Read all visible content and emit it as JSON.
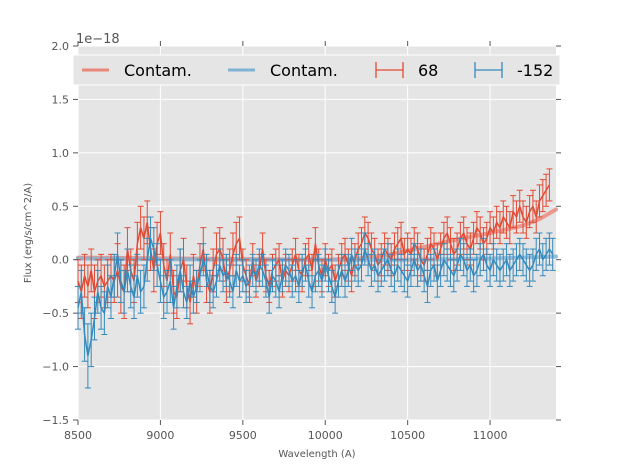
{
  "chart_data": {
    "type": "line",
    "title": "",
    "xlabel": "Wavelength (A)",
    "ylabel": "Flux (erg/s/cm^2/A)",
    "y_offset_label": "1e−18",
    "xlim": [
      8500,
      11400
    ],
    "ylim": [
      -1.5,
      2.0
    ],
    "xticks": [
      8500,
      9000,
      9500,
      10000,
      10500,
      11000
    ],
    "xtick_labels": [
      "8500",
      "9000",
      "9500",
      "10000",
      "10500",
      "11000"
    ],
    "yticks": [
      -1.5,
      -1.0,
      -0.5,
      0.0,
      0.5,
      1.0,
      1.5,
      2.0
    ],
    "ytick_labels": [
      "−1.5",
      "−1.0",
      "−0.5",
      "0.0",
      "0.5",
      "1.0",
      "1.5",
      "2.0"
    ],
    "grid": true,
    "style": "ggplot",
    "legend": {
      "placement": "top",
      "ncol": 4,
      "entries": [
        {
          "label": "Contam.",
          "kind": "line",
          "color": "#E8877A"
        },
        {
          "label": "Contam.",
          "kind": "line",
          "color": "#7FB2D5"
        },
        {
          "label": "68",
          "kind": "errorbar",
          "color": "#E24A33"
        },
        {
          "label": "-152",
          "kind": "errorbar",
          "color": "#348ABD"
        }
      ]
    },
    "x_start": 8500,
    "x_step": 20,
    "series": [
      {
        "name": "Contam. (68)",
        "kind": "line",
        "color": "#E8877A",
        "x": [
          8500,
          10000,
          10200,
          10400,
          10600,
          10800,
          11000,
          11200,
          11300,
          11400
        ],
        "values": [
          0.02,
          0.0,
          0.01,
          0.05,
          0.12,
          0.19,
          0.25,
          0.32,
          0.38,
          0.47
        ]
      },
      {
        "name": "Contam. (-152)",
        "kind": "line",
        "color": "#7FB2D5",
        "x": [
          8500,
          9500,
          10000,
          10500,
          11000,
          11400
        ],
        "values": [
          0.01,
          0.0,
          0.0,
          0.0,
          0.01,
          0.03
        ]
      },
      {
        "name": "68",
        "kind": "errorbar",
        "color": "#E24A33",
        "values": [
          -0.2,
          -0.3,
          -0.15,
          -0.25,
          -0.1,
          -0.3,
          -0.2,
          -0.15,
          -0.25,
          -0.2,
          -0.15,
          -0.2,
          -0.1,
          -0.25,
          -0.3,
          0.1,
          -0.1,
          -0.2,
          0.15,
          0.3,
          0.2,
          0.35,
          0.1,
          -0.1,
          0.15,
          0.25,
          -0.05,
          -0.2,
          0.05,
          -0.3,
          -0.35,
          -0.1,
          0.0,
          -0.25,
          -0.4,
          -0.15,
          -0.3,
          -0.05,
          0.1,
          -0.2,
          -0.3,
          -0.1,
          0.05,
          0.1,
          0.0,
          -0.2,
          -0.1,
          0.05,
          0.15,
          0.2,
          -0.05,
          -0.15,
          -0.25,
          0.0,
          -0.2,
          -0.1,
          0.1,
          -0.15,
          -0.25,
          -0.1,
          -0.05,
          0.0,
          -0.2,
          -0.1,
          -0.15,
          -0.05,
          0.05,
          -0.1,
          -0.15,
          0.0,
          0.05,
          -0.1,
          0.15,
          -0.05,
          -0.15,
          0.0,
          -0.1,
          -0.05,
          -0.2,
          -0.1,
          0.0,
          0.05,
          -0.05,
          -0.15,
          0.0,
          0.1,
          0.15,
          0.25,
          0.2,
          0.1,
          0.05,
          -0.05,
          0.0,
          0.1,
          0.05,
          0.0,
          0.1,
          0.15,
          0.2,
          0.05,
          0.1,
          0.05,
          0.15,
          0.1,
          0.0,
          -0.05,
          0.05,
          0.15,
          0.1,
          0.0,
          0.1,
          0.2,
          0.25,
          0.15,
          0.05,
          0.1,
          0.2,
          0.25,
          0.15,
          0.1,
          0.2,
          0.3,
          0.25,
          0.15,
          0.2,
          0.3,
          0.25,
          0.35,
          0.3,
          0.4,
          0.35,
          0.3,
          0.45,
          0.4,
          0.5,
          0.4,
          0.35,
          0.45,
          0.5,
          0.4,
          0.55,
          0.6,
          0.65,
          0.7
        ],
        "errors": [
          0.2,
          0.25,
          0.2,
          0.2,
          0.2,
          0.25,
          0.2,
          0.2,
          0.2,
          0.2,
          0.2,
          0.2,
          0.25,
          0.25,
          0.25,
          0.2,
          0.2,
          0.2,
          0.2,
          0.2,
          0.2,
          0.2,
          0.2,
          0.2,
          0.2,
          0.2,
          0.2,
          0.2,
          0.2,
          0.2,
          0.2,
          0.2,
          0.2,
          0.2,
          0.2,
          0.2,
          0.2,
          0.2,
          0.2,
          0.2,
          0.2,
          0.2,
          0.2,
          0.2,
          0.2,
          0.2,
          0.2,
          0.2,
          0.2,
          0.2,
          0.15,
          0.15,
          0.15,
          0.15,
          0.15,
          0.15,
          0.15,
          0.15,
          0.15,
          0.15,
          0.15,
          0.15,
          0.15,
          0.15,
          0.15,
          0.15,
          0.15,
          0.15,
          0.15,
          0.15,
          0.15,
          0.15,
          0.15,
          0.15,
          0.15,
          0.15,
          0.15,
          0.15,
          0.15,
          0.15,
          0.15,
          0.15,
          0.15,
          0.15,
          0.15,
          0.15,
          0.15,
          0.15,
          0.15,
          0.15,
          0.15,
          0.15,
          0.15,
          0.15,
          0.15,
          0.15,
          0.15,
          0.15,
          0.15,
          0.15,
          0.15,
          0.15,
          0.15,
          0.15,
          0.15,
          0.15,
          0.15,
          0.15,
          0.15,
          0.15,
          0.15,
          0.15,
          0.15,
          0.15,
          0.15,
          0.15,
          0.15,
          0.15,
          0.15,
          0.15,
          0.15,
          0.15,
          0.15,
          0.15,
          0.15,
          0.15,
          0.15,
          0.15,
          0.15,
          0.15,
          0.15,
          0.15,
          0.15,
          0.15,
          0.15,
          0.15,
          0.15,
          0.15,
          0.15,
          0.15,
          0.15,
          0.15,
          0.15,
          0.15,
          0.15
        ]
      },
      {
        "name": "-152",
        "kind": "errorbar",
        "color": "#348ABD",
        "values": [
          -0.45,
          -0.3,
          -0.7,
          -0.9,
          -0.75,
          -0.55,
          -0.3,
          -0.45,
          -0.5,
          -0.25,
          -0.35,
          -0.15,
          0.05,
          -0.2,
          -0.3,
          -0.1,
          -0.25,
          -0.35,
          -0.15,
          -0.3,
          -0.25,
          0.0,
          0.2,
          0.1,
          -0.05,
          -0.2,
          -0.35,
          -0.3,
          -0.2,
          -0.45,
          -0.25,
          -0.1,
          -0.3,
          -0.4,
          -0.2,
          -0.35,
          -0.25,
          -0.15,
          0.0,
          -0.1,
          -0.25,
          -0.3,
          -0.2,
          -0.05,
          -0.15,
          -0.1,
          -0.2,
          -0.3,
          -0.1,
          -0.2,
          -0.15,
          -0.25,
          -0.2,
          -0.1,
          -0.15,
          -0.05,
          -0.1,
          -0.2,
          -0.35,
          -0.15,
          -0.2,
          -0.3,
          -0.15,
          -0.05,
          -0.1,
          -0.2,
          -0.15,
          -0.25,
          -0.1,
          -0.05,
          -0.2,
          -0.3,
          -0.15,
          -0.1,
          -0.2,
          -0.05,
          -0.15,
          -0.25,
          -0.35,
          -0.2,
          -0.1,
          -0.2,
          -0.1,
          0.05,
          -0.05,
          -0.1,
          -0.05,
          0.1,
          0.0,
          -0.1,
          -0.05,
          -0.15,
          -0.1,
          -0.05,
          0.0,
          -0.1,
          -0.15,
          -0.05,
          -0.1,
          -0.15,
          -0.2,
          -0.1,
          0.0,
          -0.1,
          -0.05,
          -0.15,
          -0.25,
          -0.1,
          -0.05,
          -0.2,
          -0.1,
          0.0,
          -0.05,
          -0.1,
          -0.15,
          -0.05,
          0.05,
          0.0,
          -0.1,
          -0.05,
          -0.15,
          -0.1,
          0.0,
          0.05,
          -0.05,
          -0.1,
          0.0,
          -0.05,
          -0.1,
          -0.05,
          0.0,
          -0.1,
          -0.05,
          0.0,
          0.05,
          0.0,
          -0.05,
          -0.1,
          -0.05,
          0.05,
          0.1,
          0.0,
          0.05,
          0.1,
          0.05
        ],
        "errors": [
          0.2,
          0.2,
          0.25,
          0.3,
          0.25,
          0.2,
          0.2,
          0.2,
          0.2,
          0.2,
          0.2,
          0.2,
          0.2,
          0.2,
          0.2,
          0.2,
          0.2,
          0.2,
          0.2,
          0.2,
          0.2,
          0.2,
          0.2,
          0.2,
          0.2,
          0.2,
          0.2,
          0.2,
          0.2,
          0.2,
          0.2,
          0.2,
          0.15,
          0.15,
          0.15,
          0.15,
          0.15,
          0.15,
          0.15,
          0.15,
          0.15,
          0.15,
          0.15,
          0.15,
          0.15,
          0.15,
          0.15,
          0.15,
          0.15,
          0.15,
          0.15,
          0.15,
          0.15,
          0.15,
          0.15,
          0.15,
          0.15,
          0.15,
          0.15,
          0.15,
          0.15,
          0.15,
          0.15,
          0.15,
          0.15,
          0.15,
          0.15,
          0.15,
          0.15,
          0.15,
          0.15,
          0.15,
          0.15,
          0.15,
          0.15,
          0.15,
          0.15,
          0.15,
          0.15,
          0.15,
          0.15,
          0.15,
          0.15,
          0.15,
          0.15,
          0.15,
          0.15,
          0.15,
          0.15,
          0.15,
          0.15,
          0.15,
          0.15,
          0.15,
          0.15,
          0.15,
          0.15,
          0.15,
          0.15,
          0.15,
          0.15,
          0.15,
          0.15,
          0.15,
          0.15,
          0.15,
          0.15,
          0.15,
          0.15,
          0.15,
          0.15,
          0.15,
          0.15,
          0.15,
          0.15,
          0.15,
          0.15,
          0.15,
          0.15,
          0.15,
          0.15,
          0.15,
          0.15,
          0.15,
          0.15,
          0.15,
          0.15,
          0.15,
          0.15,
          0.15,
          0.15,
          0.15,
          0.15,
          0.15,
          0.15,
          0.15,
          0.15,
          0.15,
          0.15,
          0.15,
          0.15,
          0.15,
          0.15,
          0.15,
          0.15
        ]
      }
    ]
  }
}
